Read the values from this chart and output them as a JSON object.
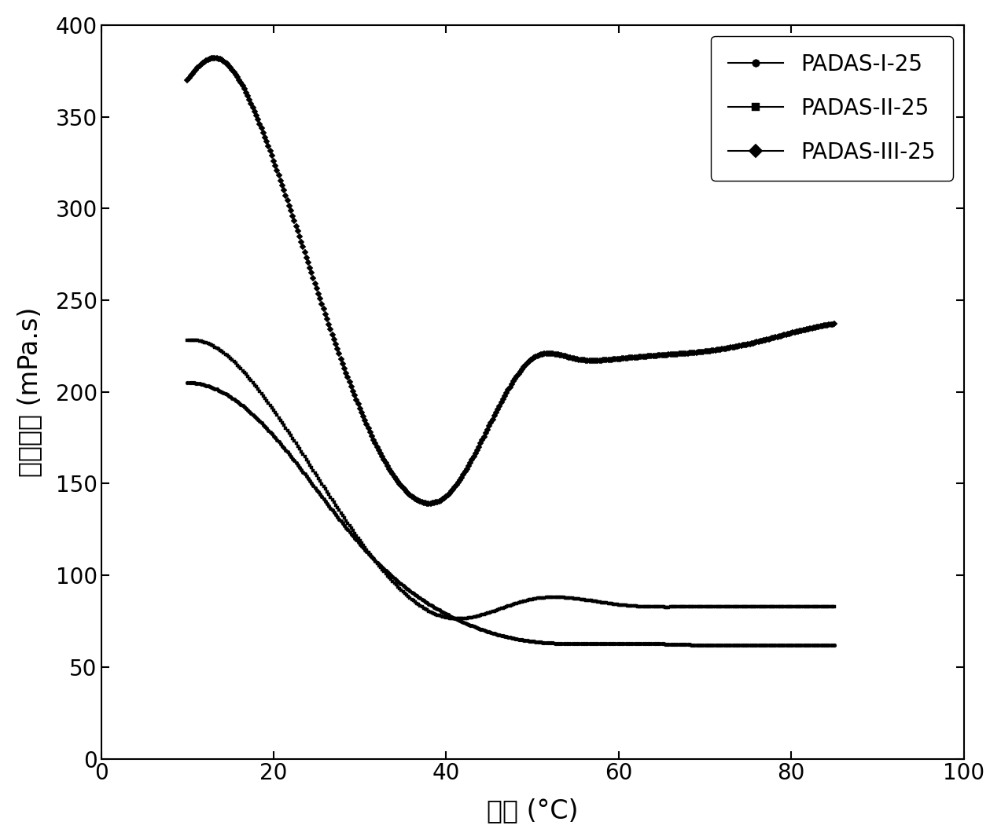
{
  "title": "",
  "xlabel": "温度 (°C)",
  "ylabel": "表观粘度 (mPa.s)",
  "xlim": [
    0,
    100
  ],
  "ylim": [
    0,
    400
  ],
  "xticks": [
    0,
    20,
    40,
    60,
    80,
    100
  ],
  "yticks": [
    0,
    50,
    100,
    150,
    200,
    250,
    300,
    350,
    400
  ],
  "background_color": "#ffffff",
  "series": [
    {
      "label": "PADAS-I-25",
      "marker": "o",
      "color": "#000000",
      "key_x": [
        10,
        14,
        20,
        30,
        40,
        50,
        60,
        70,
        80,
        85
      ],
      "key_y": [
        205,
        200,
        176,
        117,
        79,
        64,
        63,
        62,
        62,
        62
      ]
    },
    {
      "label": "PADAS-II-25",
      "marker": "s",
      "color": "#000000",
      "key_x": [
        10,
        14,
        20,
        30,
        40,
        50,
        60,
        70,
        80,
        85
      ],
      "key_y": [
        228,
        222,
        190,
        119,
        77,
        87,
        84,
        83,
        83,
        83
      ]
    },
    {
      "label": "PADAS-III-25",
      "marker": "D",
      "color": "#000000",
      "key_x": [
        10,
        12,
        13,
        20,
        30,
        40,
        50,
        55,
        60,
        65,
        70,
        75,
        80,
        85
      ],
      "key_y": [
        370,
        380,
        382,
        326,
        191,
        143,
        218,
        218,
        218,
        220,
        222,
        226,
        232,
        237
      ]
    }
  ]
}
